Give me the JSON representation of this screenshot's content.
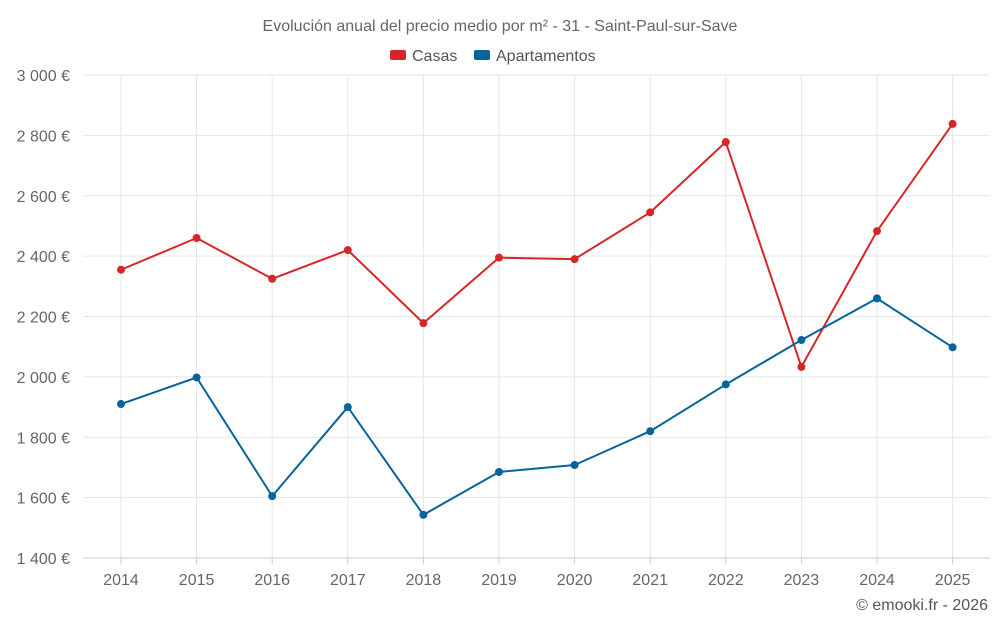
{
  "chart_data": {
    "type": "line",
    "title": "Evolución anual del precio medio por m² - 31 - Saint-Paul-sur-Save",
    "categories": [
      "2014",
      "2015",
      "2016",
      "2017",
      "2018",
      "2019",
      "2020",
      "2021",
      "2022",
      "2023",
      "2024",
      "2025"
    ],
    "series": [
      {
        "name": "Casas",
        "color": "#d62728",
        "values": [
          2355,
          2460,
          2325,
          2420,
          2178,
          2395,
          2390,
          2545,
          2778,
          2033,
          2483,
          2838
        ]
      },
      {
        "name": "Apartamentos",
        "color": "#06639b",
        "values": [
          1910,
          1998,
          1605,
          1900,
          1543,
          1685,
          1708,
          1820,
          1975,
          2122,
          2260,
          2098
        ]
      }
    ],
    "ylim": [
      1400,
      3000
    ],
    "yticks": [
      1400,
      1600,
      1800,
      2000,
      2200,
      2400,
      2600,
      2800,
      3000
    ],
    "ytick_labels": [
      "1 400 €",
      "1 600 €",
      "1 800 €",
      "2 000 €",
      "2 200 €",
      "2 400 €",
      "2 600 €",
      "2 800 €",
      "3 000 €"
    ],
    "xlabel": "",
    "ylabel": "",
    "grid": true,
    "legend_position": "top-center"
  },
  "credit": "© emooki.fr - 2026"
}
